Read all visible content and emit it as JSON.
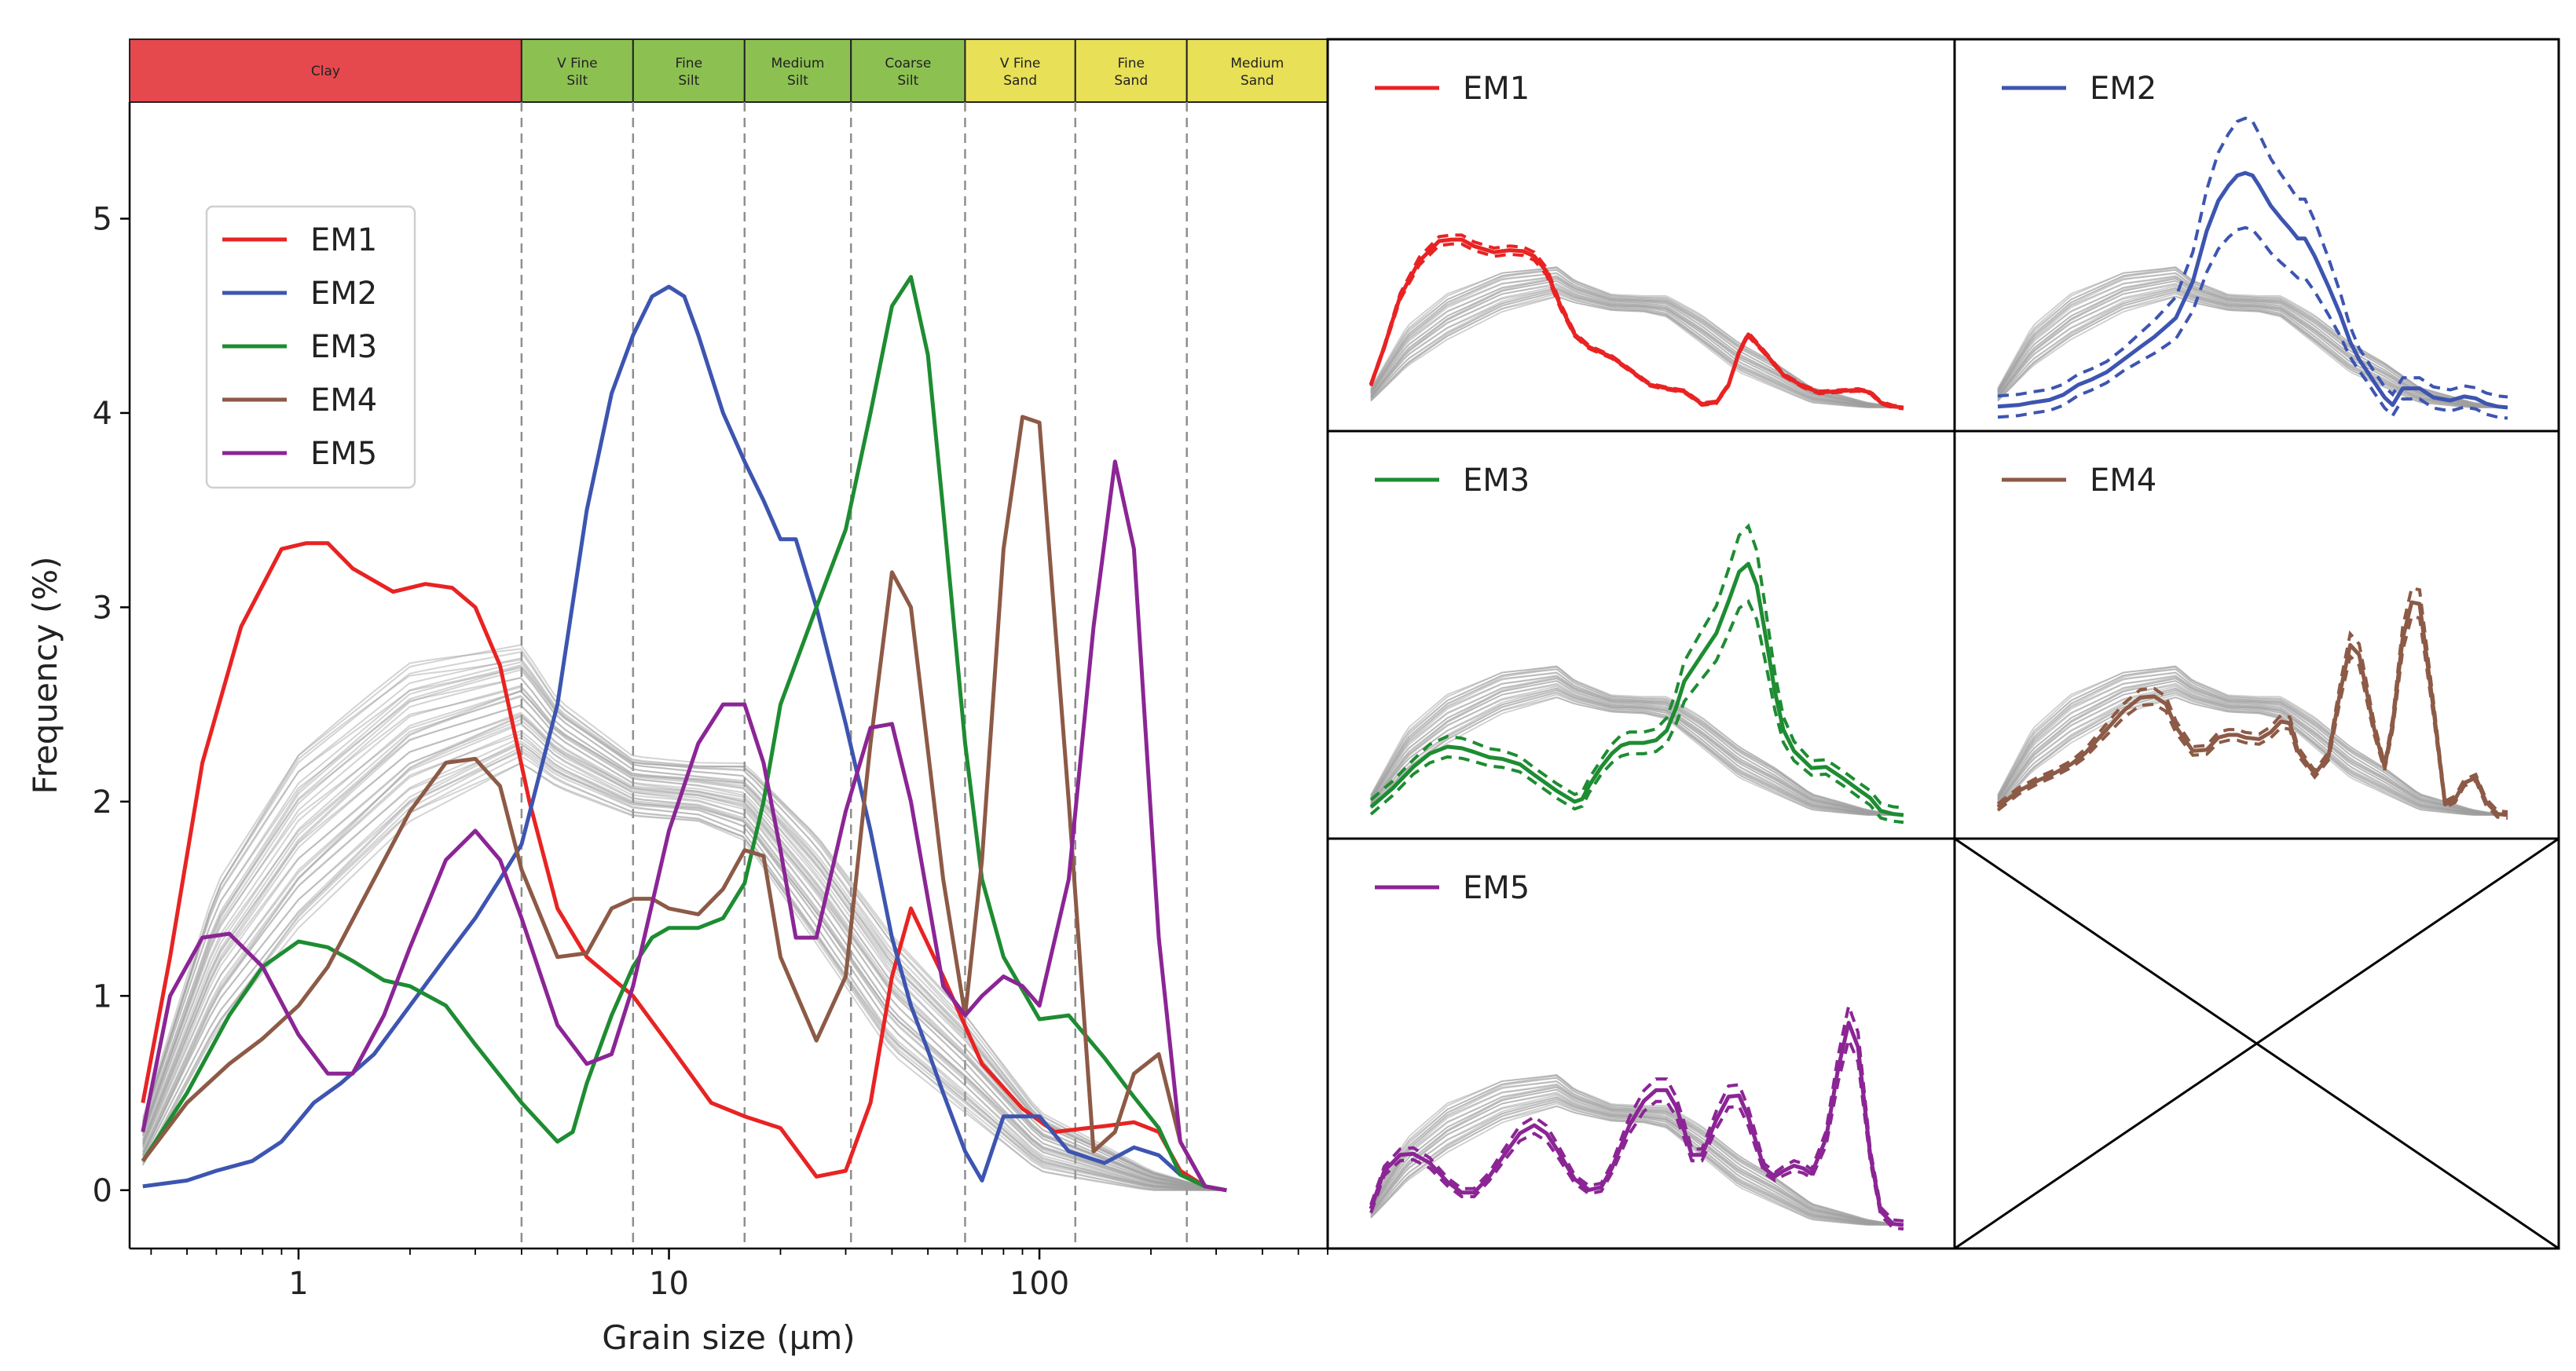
{
  "chart_data": [
    {
      "type": "line",
      "title": "",
      "xlabel": "Grain size (µm)",
      "ylabel": "Frequency (%)",
      "xscale": "log",
      "xlim": [
        0.35,
        600
      ],
      "ylim": [
        -0.3,
        5.6
      ],
      "x_ticks": [
        1,
        10,
        100
      ],
      "x_tick_labels": [
        "1",
        "10",
        "100"
      ],
      "y_ticks": [
        0,
        1,
        2,
        3,
        4,
        5
      ],
      "y_tick_labels": [
        "0",
        "1",
        "2",
        "3",
        "4",
        "5"
      ],
      "grain_classes": [
        {
          "name": "Clay",
          "line1": "Clay",
          "line2": "",
          "from": 0.35,
          "to": 4,
          "color": "#e5484d"
        },
        {
          "name": "V Fine Silt",
          "line1": "V Fine",
          "line2": "Silt",
          "from": 4,
          "to": 8,
          "color": "#8cc152"
        },
        {
          "name": "Fine Silt",
          "line1": "Fine",
          "line2": "Silt",
          "from": 8,
          "to": 16,
          "color": "#8cc152"
        },
        {
          "name": "Medium Silt",
          "line1": "Medium",
          "line2": "Silt",
          "from": 16,
          "to": 31,
          "color": "#8cc152"
        },
        {
          "name": "Coarse Silt",
          "line1": "Coarse",
          "line2": "Silt",
          "from": 31,
          "to": 63,
          "color": "#8cc152"
        },
        {
          "name": "V Fine Sand",
          "line1": "V Fine",
          "line2": "Sand",
          "from": 63,
          "to": 125,
          "color": "#e8e057"
        },
        {
          "name": "Fine Sand",
          "line1": "Fine",
          "line2": "Sand",
          "from": 125,
          "to": 250,
          "color": "#e8e057"
        },
        {
          "name": "Medium Sand",
          "line1": "Medium",
          "line2": "Sand",
          "from": 250,
          "to": 600,
          "color": "#e8e057"
        }
      ],
      "class_boundaries": [
        4,
        8,
        16,
        31,
        63,
        125,
        250
      ],
      "legend_position": "upper-left",
      "background_samples": {
        "color": "#9e9e9e",
        "description_points": {
          "x": [
            0.38,
            0.6,
            1,
            2,
            4,
            5,
            8,
            12,
            16,
            25,
            40,
            63,
            100,
            200,
            300
          ],
          "mean": [
            0.25,
            1.2,
            1.8,
            2.3,
            2.5,
            2.3,
            2.08,
            2.05,
            2.0,
            1.55,
            1.0,
            0.65,
            0.25,
            0.05,
            0.0
          ],
          "spread": [
            0.12,
            0.38,
            0.45,
            0.4,
            0.3,
            0.22,
            0.15,
            0.15,
            0.2,
            0.28,
            0.3,
            0.25,
            0.15,
            0.05,
            0.0
          ]
        }
      },
      "series": [
        {
          "name": "EM1",
          "color": "#e82323",
          "x": [
            0.38,
            0.45,
            0.55,
            0.7,
            0.9,
            1.05,
            1.2,
            1.4,
            1.8,
            2.2,
            2.6,
            3.0,
            3.5,
            4.2,
            5.0,
            6.0,
            8.0,
            10.0,
            13.0,
            16.0,
            20.0,
            25.0,
            30.0,
            35.0,
            40.0,
            45.0,
            55.0,
            70.0,
            90.0,
            110.0,
            150.0,
            180.0,
            210.0,
            240.0,
            280.0,
            320.0
          ],
          "y": [
            0.45,
            1.2,
            2.2,
            2.9,
            3.3,
            3.33,
            3.33,
            3.2,
            3.08,
            3.12,
            3.1,
            3.0,
            2.7,
            2.0,
            1.45,
            1.2,
            1.0,
            0.75,
            0.45,
            0.38,
            0.32,
            0.07,
            0.1,
            0.45,
            1.1,
            1.45,
            1.1,
            0.65,
            0.42,
            0.3,
            0.33,
            0.35,
            0.3,
            0.1,
            0.02,
            0.0
          ]
        },
        {
          "name": "EM2",
          "color": "#3d55b0",
          "x": [
            0.38,
            0.5,
            0.6,
            0.75,
            0.9,
            1.1,
            1.3,
            1.6,
            2.0,
            2.5,
            3.0,
            3.5,
            4.0,
            5.0,
            6.0,
            7.0,
            8.0,
            9.0,
            10.0,
            11.0,
            12.0,
            14.0,
            16.0,
            18.0,
            20.0,
            22.0,
            25.0,
            30.0,
            35.0,
            40.0,
            45.0,
            50.0,
            55.0,
            63.0,
            70.0,
            80.0,
            100.0,
            120.0,
            150.0,
            180.0,
            210.0,
            240.0,
            280.0,
            320.0
          ],
          "y": [
            0.02,
            0.05,
            0.1,
            0.15,
            0.25,
            0.45,
            0.55,
            0.7,
            0.95,
            1.2,
            1.4,
            1.6,
            1.78,
            2.5,
            3.5,
            4.1,
            4.4,
            4.6,
            4.65,
            4.6,
            4.4,
            4.0,
            3.75,
            3.55,
            3.35,
            3.35,
            3.0,
            2.4,
            1.85,
            1.3,
            0.95,
            0.72,
            0.5,
            0.2,
            0.05,
            0.38,
            0.38,
            0.2,
            0.14,
            0.22,
            0.18,
            0.08,
            0.02,
            0.0
          ]
        },
        {
          "name": "EM3",
          "color": "#1e8c32",
          "x": [
            0.38,
            0.5,
            0.65,
            0.8,
            1.0,
            1.2,
            1.4,
            1.7,
            2.0,
            2.5,
            3.0,
            4.0,
            5.0,
            5.5,
            6.0,
            7.0,
            8.0,
            9.0,
            10.0,
            12.0,
            14.0,
            16.0,
            18.0,
            20.0,
            25.0,
            30.0,
            35.0,
            40.0,
            45.0,
            50.0,
            55.0,
            63.0,
            70.0,
            80.0,
            100.0,
            120.0,
            150.0,
            180.0,
            210.0,
            240.0,
            280.0,
            320.0
          ],
          "y": [
            0.15,
            0.5,
            0.9,
            1.15,
            1.28,
            1.25,
            1.18,
            1.08,
            1.05,
            0.95,
            0.75,
            0.45,
            0.25,
            0.3,
            0.55,
            0.9,
            1.15,
            1.3,
            1.35,
            1.35,
            1.4,
            1.58,
            2.0,
            2.5,
            3.0,
            3.4,
            4.0,
            4.55,
            4.7,
            4.3,
            3.5,
            2.3,
            1.6,
            1.2,
            0.88,
            0.9,
            0.68,
            0.48,
            0.32,
            0.08,
            0.02,
            0.0
          ]
        },
        {
          "name": "EM4",
          "color": "#8c5a46",
          "x": [
            0.38,
            0.5,
            0.65,
            0.8,
            1.0,
            1.2,
            1.5,
            2.0,
            2.5,
            3.0,
            3.5,
            4.0,
            5.0,
            6.0,
            7.0,
            8.0,
            9.0,
            10.0,
            12.0,
            14.0,
            16.0,
            18.0,
            20.0,
            25.0,
            30.0,
            35.0,
            40.0,
            45.0,
            55.0,
            63.0,
            70.0,
            80.0,
            90.0,
            100.0,
            120.0,
            140.0,
            160.0,
            180.0,
            210.0,
            240.0,
            280.0,
            320.0
          ],
          "y": [
            0.15,
            0.45,
            0.65,
            0.78,
            0.95,
            1.15,
            1.5,
            1.95,
            2.2,
            2.22,
            2.08,
            1.65,
            1.2,
            1.22,
            1.45,
            1.5,
            1.5,
            1.45,
            1.42,
            1.55,
            1.75,
            1.72,
            1.2,
            0.77,
            1.1,
            2.3,
            3.18,
            3.0,
            1.6,
            0.9,
            1.7,
            3.3,
            3.98,
            3.95,
            2.0,
            0.2,
            0.3,
            0.6,
            0.7,
            0.25,
            0.02,
            0.0
          ]
        },
        {
          "name": "EM5",
          "color": "#8b2595",
          "x": [
            0.38,
            0.45,
            0.55,
            0.65,
            0.8,
            1.0,
            1.2,
            1.4,
            1.7,
            2.0,
            2.5,
            3.0,
            3.5,
            4.0,
            5.0,
            6.0,
            7.0,
            8.0,
            10.0,
            12.0,
            14.0,
            16.0,
            18.0,
            20.0,
            22.0,
            25.0,
            30.0,
            35.0,
            40.0,
            45.0,
            55.0,
            63.0,
            70.0,
            80.0,
            90.0,
            100.0,
            120.0,
            140.0,
            160.0,
            180.0,
            210.0,
            240.0,
            280.0,
            320.0
          ],
          "y": [
            0.3,
            1.0,
            1.3,
            1.32,
            1.15,
            0.8,
            0.6,
            0.6,
            0.9,
            1.25,
            1.7,
            1.85,
            1.7,
            1.4,
            0.85,
            0.65,
            0.7,
            1.05,
            1.85,
            2.3,
            2.5,
            2.5,
            2.2,
            1.75,
            1.3,
            1.3,
            1.95,
            2.38,
            2.4,
            2.0,
            1.05,
            0.9,
            1.0,
            1.1,
            1.05,
            0.95,
            1.6,
            2.9,
            3.75,
            3.3,
            1.3,
            0.25,
            0.02,
            0.0
          ]
        }
      ]
    },
    {
      "type": "line",
      "panel": "EM1",
      "legend_label": "EM1",
      "color": "#e82323",
      "x": [
        0.38,
        0.45,
        0.55,
        0.7,
        0.9,
        1.05,
        1.2,
        1.4,
        1.8,
        2.2,
        2.6,
        3.0,
        3.5,
        4.2,
        5.0,
        6.0,
        8.0,
        10.0,
        13.0,
        16.0,
        20.0,
        25.0,
        30.0,
        35.0,
        40.0,
        45.0,
        55.0,
        70.0,
        90.0,
        110.0,
        150.0,
        180.0,
        210.0,
        240.0,
        280.0,
        320.0
      ],
      "y": [
        0.45,
        1.2,
        2.2,
        2.9,
        3.3,
        3.33,
        3.33,
        3.2,
        3.08,
        3.12,
        3.1,
        3.0,
        2.7,
        2.0,
        1.45,
        1.2,
        1.0,
        0.75,
        0.45,
        0.38,
        0.32,
        0.07,
        0.1,
        0.45,
        1.1,
        1.45,
        1.1,
        0.65,
        0.42,
        0.3,
        0.33,
        0.35,
        0.3,
        0.1,
        0.02,
        0.0
      ],
      "band": 0.08
    },
    {
      "type": "line",
      "panel": "EM2",
      "legend_label": "EM2",
      "color": "#3d55b0",
      "x": [
        0.38,
        0.5,
        0.6,
        0.75,
        0.9,
        1.1,
        1.3,
        1.6,
        2.0,
        2.5,
        3.0,
        3.5,
        4.0,
        5.0,
        6.0,
        7.0,
        8.0,
        9.0,
        10.0,
        11.0,
        12.0,
        14.0,
        16.0,
        18.0,
        20.0,
        22.0,
        25.0,
        30.0,
        35.0,
        40.0,
        45.0,
        50.0,
        55.0,
        63.0,
        70.0,
        80.0,
        100.0,
        120.0,
        150.0,
        180.0,
        210.0,
        240.0,
        280.0,
        320.0
      ],
      "y": [
        0.02,
        0.05,
        0.1,
        0.15,
        0.25,
        0.45,
        0.55,
        0.7,
        0.95,
        1.2,
        1.4,
        1.6,
        1.78,
        2.5,
        3.5,
        4.1,
        4.4,
        4.6,
        4.65,
        4.6,
        4.4,
        4.0,
        3.75,
        3.55,
        3.35,
        3.35,
        3.0,
        2.4,
        1.85,
        1.3,
        0.95,
        0.72,
        0.5,
        0.2,
        0.05,
        0.38,
        0.38,
        0.2,
        0.14,
        0.22,
        0.18,
        0.08,
        0.02,
        0.0
      ],
      "band": 0.7
    },
    {
      "type": "line",
      "panel": "EM3",
      "legend_label": "EM3",
      "color": "#1e8c32",
      "x": [
        0.38,
        0.5,
        0.65,
        0.8,
        1.0,
        1.2,
        1.4,
        1.7,
        2.0,
        2.5,
        3.0,
        4.0,
        5.0,
        5.5,
        6.0,
        7.0,
        8.0,
        9.0,
        10.0,
        12.0,
        14.0,
        16.0,
        18.0,
        20.0,
        25.0,
        30.0,
        35.0,
        40.0,
        45.0,
        50.0,
        55.0,
        63.0,
        70.0,
        80.0,
        100.0,
        120.0,
        150.0,
        180.0,
        210.0,
        240.0,
        280.0,
        320.0
      ],
      "y": [
        0.15,
        0.5,
        0.9,
        1.15,
        1.28,
        1.25,
        1.18,
        1.08,
        1.05,
        0.95,
        0.75,
        0.45,
        0.25,
        0.3,
        0.55,
        0.9,
        1.15,
        1.3,
        1.35,
        1.35,
        1.4,
        1.58,
        2.0,
        2.5,
        3.0,
        3.4,
        4.0,
        4.55,
        4.7,
        4.3,
        3.5,
        2.3,
        1.6,
        1.2,
        0.88,
        0.9,
        0.68,
        0.48,
        0.32,
        0.08,
        0.02,
        0.0
      ],
      "band": 0.45
    },
    {
      "type": "line",
      "panel": "EM4",
      "legend_label": "EM4",
      "color": "#8c5a46",
      "x": [
        0.38,
        0.5,
        0.65,
        0.8,
        1.0,
        1.2,
        1.5,
        2.0,
        2.5,
        3.0,
        3.5,
        4.0,
        5.0,
        6.0,
        7.0,
        8.0,
        9.0,
        10.0,
        12.0,
        14.0,
        16.0,
        18.0,
        20.0,
        25.0,
        30.0,
        35.0,
        40.0,
        45.0,
        55.0,
        63.0,
        70.0,
        80.0,
        90.0,
        100.0,
        120.0,
        140.0,
        160.0,
        180.0,
        210.0,
        240.0,
        280.0,
        320.0
      ],
      "y": [
        0.15,
        0.45,
        0.65,
        0.78,
        0.95,
        1.15,
        1.5,
        1.95,
        2.2,
        2.22,
        2.08,
        1.65,
        1.2,
        1.22,
        1.45,
        1.5,
        1.5,
        1.45,
        1.42,
        1.55,
        1.75,
        1.72,
        1.2,
        0.77,
        1.1,
        2.3,
        3.18,
        3.0,
        1.6,
        0.9,
        1.7,
        3.3,
        3.98,
        3.95,
        2.0,
        0.2,
        0.3,
        0.6,
        0.7,
        0.25,
        0.02,
        0.0
      ],
      "band": 0.2
    },
    {
      "type": "line",
      "panel": "EM5",
      "legend_label": "EM5",
      "color": "#8b2595",
      "x": [
        0.38,
        0.45,
        0.55,
        0.65,
        0.8,
        1.0,
        1.2,
        1.4,
        1.7,
        2.0,
        2.5,
        3.0,
        3.5,
        4.0,
        5.0,
        6.0,
        7.0,
        8.0,
        10.0,
        12.0,
        14.0,
        16.0,
        18.0,
        20.0,
        22.0,
        25.0,
        30.0,
        35.0,
        40.0,
        45.0,
        55.0,
        63.0,
        70.0,
        80.0,
        90.0,
        100.0,
        120.0,
        140.0,
        160.0,
        180.0,
        210.0,
        240.0,
        280.0,
        320.0
      ],
      "y": [
        0.3,
        1.0,
        1.3,
        1.32,
        1.15,
        0.8,
        0.6,
        0.6,
        0.9,
        1.25,
        1.7,
        1.85,
        1.7,
        1.4,
        0.85,
        0.65,
        0.7,
        1.05,
        1.85,
        2.3,
        2.5,
        2.5,
        2.2,
        1.75,
        1.3,
        1.3,
        1.95,
        2.38,
        2.4,
        2.0,
        1.05,
        0.9,
        1.0,
        1.1,
        1.05,
        0.95,
        1.6,
        2.9,
        3.75,
        3.3,
        1.3,
        0.25,
        0.02,
        0.0
      ],
      "band": 0.25
    },
    {
      "type": "empty",
      "panel": "placeholder"
    }
  ]
}
